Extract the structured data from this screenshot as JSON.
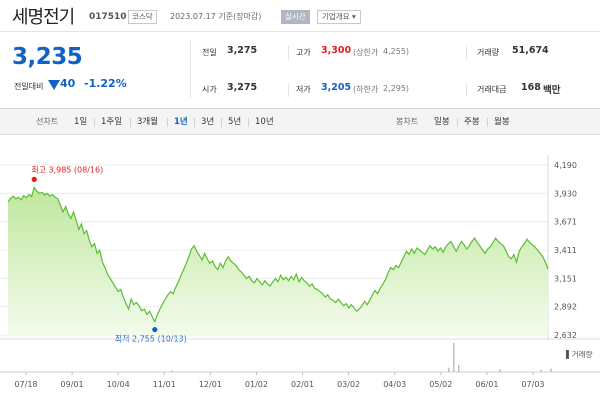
{
  "header": {
    "stock_name": "세명전기",
    "stock_code": "017510",
    "market": "코스닥",
    "base_date": "2023.07.17 기준(장마감)",
    "realtime_label": "실시간",
    "company_info_label": "기업개요 ▾"
  },
  "price": {
    "current": "3,235",
    "change_label": "전일대비",
    "change_amount": "40",
    "change_rate": "-1.22%",
    "direction": "down"
  },
  "quotes": {
    "prev_close_label": "전일",
    "prev_close": "3,275",
    "high_label": "고가",
    "high": "3,300",
    "upper_limit_label": "(상한가",
    "upper_limit": "4,255)",
    "volume_label": "거래량",
    "volume": "51,674",
    "open_label": "시가",
    "open": "3,275",
    "low_label": "저가",
    "low": "3,205",
    "lower_limit_label": "(하한가",
    "lower_limit": "2,295)",
    "amount_label": "거래대금",
    "amount": "168",
    "amount_unit": "백만"
  },
  "period_tabs": {
    "title": "선차트",
    "items": [
      "1일",
      "1주일",
      "3개월",
      "1년",
      "3년",
      "5년",
      "10년"
    ],
    "active": "1년"
  },
  "candle_tabs": {
    "title": "봉차트",
    "items": [
      "일봉",
      "주봉",
      "월봉"
    ]
  },
  "chart_data": {
    "type": "area",
    "period": "1y",
    "y_ticks": [
      "4,190",
      "3,930",
      "3,671",
      "3,411",
      "3,151",
      "2,892",
      "2,632"
    ],
    "ylim": [
      2632,
      4190
    ],
    "x_ticks": [
      "07/18",
      "09/01",
      "10/04",
      "11/01",
      "12/01",
      "01/02",
      "02/01",
      "03/02",
      "04/03",
      "05/02",
      "06/01",
      "07/03"
    ],
    "series": [
      {
        "values": [
          3850,
          3885,
          3905,
          3880,
          3895,
          3870,
          3910,
          3890,
          3920,
          3900,
          3985,
          3950,
          3930,
          3940,
          3915,
          3930,
          3905,
          3920,
          3895,
          3880,
          3820,
          3760,
          3810,
          3740,
          3700,
          3760,
          3680,
          3600,
          3650,
          3560,
          3590,
          3500,
          3440,
          3470,
          3380,
          3410,
          3300,
          3250,
          3190,
          3150,
          3110,
          3070,
          3030,
          3050,
          2980,
          2920,
          2870,
          2960,
          2910,
          2930,
          2900,
          2855,
          2870,
          2820,
          2850,
          2800,
          2755,
          2820,
          2870,
          2920,
          2960,
          3000,
          3030,
          3010,
          3070,
          3120,
          3180,
          3230,
          3290,
          3350,
          3420,
          3450,
          3400,
          3360,
          3320,
          3380,
          3330,
          3290,
          3310,
          3260,
          3230,
          3290,
          3250,
          3310,
          3350,
          3310,
          3290,
          3270,
          3230,
          3210,
          3180,
          3150,
          3170,
          3130,
          3110,
          3150,
          3120,
          3090,
          3130,
          3100,
          3080,
          3120,
          3150,
          3120,
          3180,
          3140,
          3160,
          3130,
          3170,
          3140,
          3190,
          3120,
          3160,
          3130,
          3110,
          3080,
          3100,
          3060,
          3050,
          3030,
          3010,
          2980,
          3000,
          2960,
          2950,
          2930,
          2960,
          2930,
          2900,
          2920,
          2880,
          2910,
          2880,
          2850,
          2870,
          2900,
          2940,
          2910,
          2950,
          3000,
          3040,
          3010,
          3060,
          3100,
          3140,
          3200,
          3250,
          3230,
          3270,
          3250,
          3300,
          3350,
          3400,
          3370,
          3420,
          3380,
          3430,
          3410,
          3390,
          3370,
          3410,
          3450,
          3420,
          3440,
          3400,
          3430,
          3390,
          3440,
          3470,
          3490,
          3440,
          3400,
          3450,
          3490,
          3460,
          3420,
          3450,
          3490,
          3520,
          3480,
          3450,
          3410,
          3380,
          3420,
          3440,
          3480,
          3520,
          3490,
          3470,
          3450,
          3400,
          3350,
          3330,
          3370,
          3300,
          3400,
          3440,
          3470,
          3510,
          3480,
          3460,
          3440,
          3410,
          3380,
          3350,
          3300,
          3235
        ]
      }
    ],
    "annotations": {
      "max_label": "최고 3,985 (08/16)",
      "max_value": 3985,
      "min_label": "최저 2,755 (10/13)",
      "min_value": 2755
    },
    "volume_legend": "거래량",
    "volume_spikes": [
      {
        "after_x_tick": 3,
        "level": 0.05
      },
      {
        "after_x_tick": 9,
        "level": 1.0
      },
      {
        "after_x_tick": 9,
        "level": 0.25
      },
      {
        "after_x_tick": 9,
        "level": 0.15
      },
      {
        "after_x_tick": 10,
        "level": 0.1
      },
      {
        "after_x_tick": 11,
        "level": 0.12
      },
      {
        "after_x_tick": 11,
        "level": 0.08
      }
    ],
    "colors": {
      "line": "#5bbd33",
      "fill_top": "#bfe79d",
      "fill_bottom": "#f3fbec",
      "max_dot": "#e0201b",
      "min_dot": "#1261c4",
      "grid": "#ececec"
    }
  }
}
